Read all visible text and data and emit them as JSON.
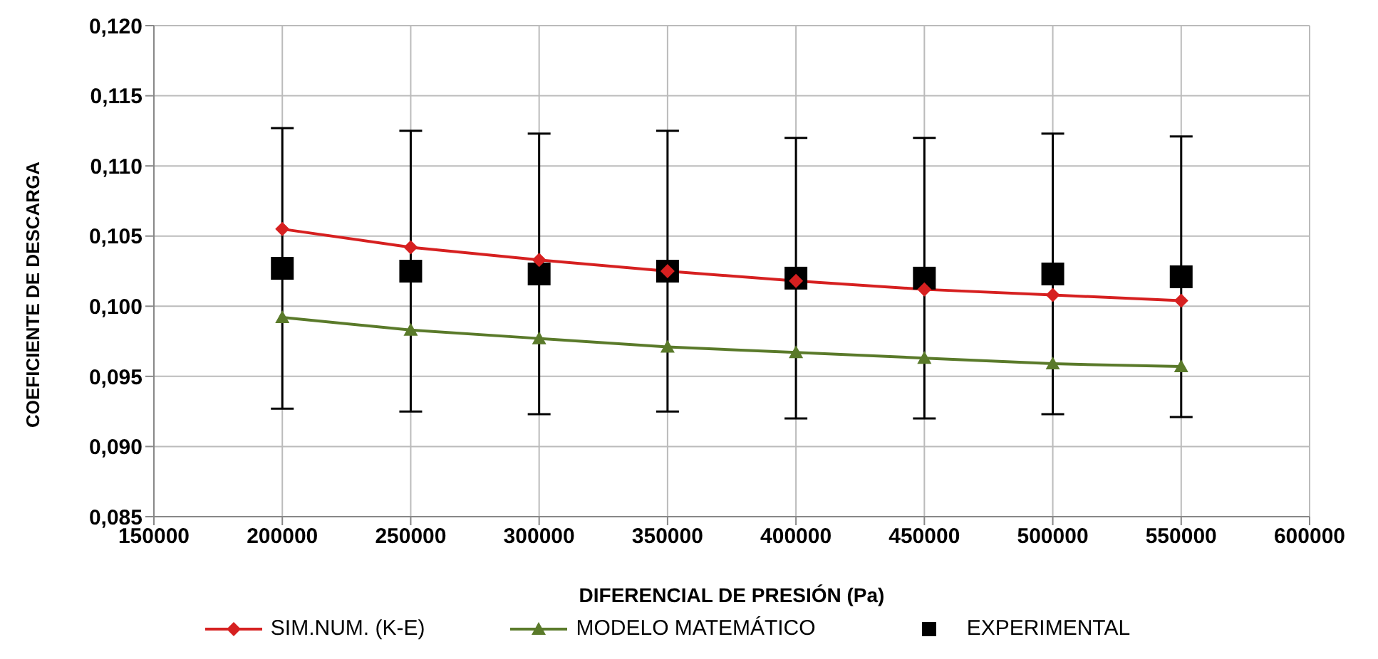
{
  "chart_data": {
    "type": "line",
    "xlabel": "DIFERENCIAL DE PRESIÓN (Pa)",
    "ylabel": "COEFICIENTE DE DESCARGA",
    "x": [
      200000,
      250000,
      300000,
      350000,
      400000,
      450000,
      500000,
      550000
    ],
    "series": [
      {
        "name": "SIM.NUM. (K-E)",
        "color": "#d62020",
        "marker": "diamond",
        "values": [
          0.1055,
          0.1042,
          0.1033,
          0.1025,
          0.1018,
          0.1012,
          0.1008,
          0.1004
        ]
      },
      {
        "name": "MODELO MATEMÁTICO",
        "color": "#5a7a2a",
        "marker": "triangle",
        "values": [
          0.0992,
          0.0983,
          0.0977,
          0.0971,
          0.0967,
          0.0963,
          0.0959,
          0.0957
        ]
      },
      {
        "name": "EXPERIMENTAL",
        "type": "scatter",
        "color": "#000000",
        "marker": "square",
        "values": [
          0.1027,
          0.1025,
          0.1023,
          0.1025,
          0.102,
          0.102,
          0.1023,
          0.1021
        ],
        "errors": [
          0.01,
          0.01,
          0.01,
          0.01,
          0.01,
          0.01,
          0.01,
          0.01
        ]
      }
    ],
    "xlim": [
      150000,
      600000
    ],
    "xticks": [
      150000,
      200000,
      250000,
      300000,
      350000,
      400000,
      450000,
      500000,
      550000,
      600000
    ],
    "ylim": [
      0.085,
      0.12
    ],
    "yticks": [
      {
        "value": 0.085,
        "label": "0,085"
      },
      {
        "value": 0.09,
        "label": "0,090"
      },
      {
        "value": 0.095,
        "label": "0,095"
      },
      {
        "value": 0.1,
        "label": "0,100"
      },
      {
        "value": 0.105,
        "label": "0,105"
      },
      {
        "value": 0.11,
        "label": "0,110"
      },
      {
        "value": 0.115,
        "label": "0,115"
      },
      {
        "value": 0.12,
        "label": "0,120"
      }
    ],
    "grid": true,
    "legend": "bottom"
  }
}
